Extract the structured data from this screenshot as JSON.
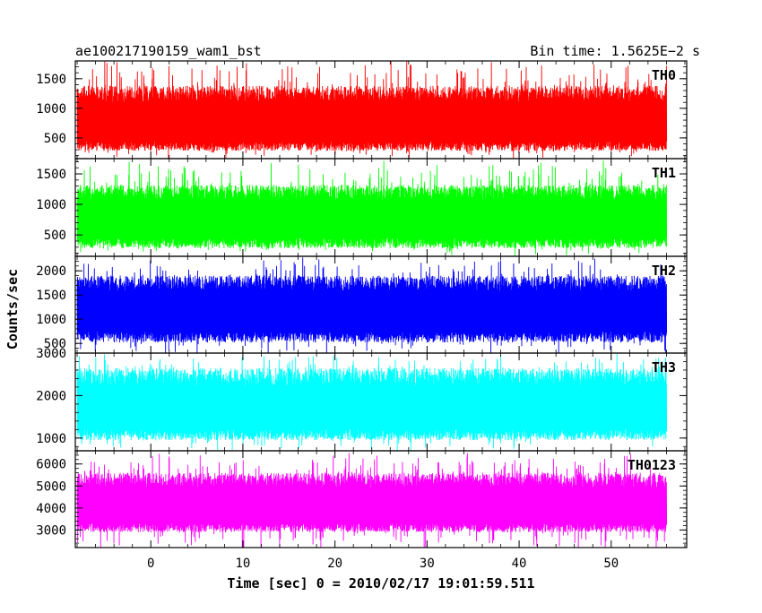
{
  "chart_data": {
    "type": "line",
    "title": "ae100217190159_wam1_bst",
    "subtitle": "Bin time: 1.5625E−2 s",
    "xlabel": "Time [sec] 0 = 2010/02/17 19:01:59.511",
    "ylabel": "Counts/sec",
    "xlim": [
      -8.2,
      58.2
    ],
    "x_ticks": [
      0,
      10,
      20,
      30,
      40,
      50
    ],
    "x_data_range": [
      -8.0,
      56.0
    ],
    "bin_time_s": 0.015625,
    "grid": false,
    "panels": [
      {
        "name": "TH0",
        "color": "#ff0000",
        "ylim": [
          150,
          1800
        ],
        "y_ticks": [
          500,
          1000,
          1500
        ],
        "typical_range": [
          280,
          1380
        ],
        "spike_max": 1850,
        "mean": 760
      },
      {
        "name": "TH1",
        "color": "#00ff00",
        "ylim": [
          150,
          1750
        ],
        "y_ticks": [
          500,
          1000,
          1500
        ],
        "typical_range": [
          280,
          1320
        ],
        "spike_max": 1750,
        "mean": 780
      },
      {
        "name": "TH2",
        "color": "#0000ff",
        "ylim": [
          300,
          2300
        ],
        "y_ticks": [
          500,
          1000,
          1500,
          2000
        ],
        "typical_range": [
          520,
          1900
        ],
        "spike_max": 2300,
        "mean": 1180
      },
      {
        "name": "TH3",
        "color": "#00ffff",
        "ylim": [
          700,
          3000
        ],
        "y_ticks": [
          1000,
          2000,
          3000
        ],
        "typical_range": [
          950,
          2650
        ],
        "spike_max": 3000,
        "mean": 1700
      },
      {
        "name": "TH0123",
        "color": "#ff00ff",
        "ylim": [
          2200,
          6600
        ],
        "y_ticks": [
          3000,
          4000,
          5000,
          6000
        ],
        "typical_range": [
          2900,
          5600
        ],
        "spike_max": 6600,
        "mean": 4100
      }
    ]
  }
}
